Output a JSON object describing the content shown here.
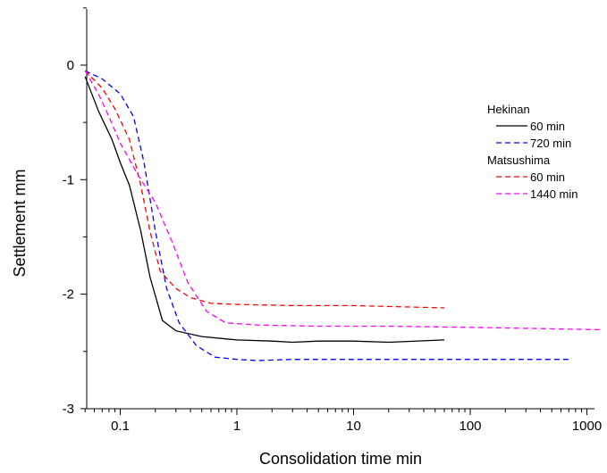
{
  "chart_data": {
    "type": "line",
    "title": "",
    "xlabel": "Consolidation time min",
    "ylabel": "Settlement mm",
    "x_scale": "log",
    "xlim": [
      0.05,
      1300
    ],
    "ylim": [
      -3,
      0.5
    ],
    "x_ticks": [
      0.1,
      1,
      10,
      100,
      1000
    ],
    "x_tick_labels": [
      "0.1",
      "1",
      "10",
      "100",
      "1000"
    ],
    "y_ticks": [
      0,
      -1,
      -2,
      -3
    ],
    "y_tick_labels": [
      "0",
      "-1",
      "-2",
      "-3"
    ],
    "grid": false,
    "legend_position": "top-right",
    "legend_groups": [
      "Hekinan",
      "Matsushima"
    ],
    "series": [
      {
        "name": "60 min",
        "group": "Hekinan",
        "color": "#000000",
        "dash": "solid",
        "points": [
          [
            0.05,
            -0.1
          ],
          [
            0.065,
            -0.4
          ],
          [
            0.085,
            -0.65
          ],
          [
            0.1,
            -0.85
          ],
          [
            0.12,
            -1.05
          ],
          [
            0.15,
            -1.45
          ],
          [
            0.18,
            -1.85
          ],
          [
            0.23,
            -2.23
          ],
          [
            0.3,
            -2.32
          ],
          [
            0.5,
            -2.37
          ],
          [
            1,
            -2.4
          ],
          [
            2,
            -2.41
          ],
          [
            3,
            -2.42
          ],
          [
            5,
            -2.41
          ],
          [
            10,
            -2.41
          ],
          [
            20,
            -2.42
          ],
          [
            60,
            -2.4
          ]
        ]
      },
      {
        "name": "720 min",
        "group": "Hekinan",
        "color": "#0000ff",
        "dash": "dashed",
        "points": [
          [
            0.05,
            -0.05
          ],
          [
            0.07,
            -0.12
          ],
          [
            0.1,
            -0.25
          ],
          [
            0.13,
            -0.45
          ],
          [
            0.16,
            -0.85
          ],
          [
            0.2,
            -1.45
          ],
          [
            0.25,
            -1.95
          ],
          [
            0.32,
            -2.25
          ],
          [
            0.45,
            -2.45
          ],
          [
            0.65,
            -2.55
          ],
          [
            1,
            -2.57
          ],
          [
            1.5,
            -2.58
          ],
          [
            3,
            -2.57
          ],
          [
            10,
            -2.57
          ],
          [
            100,
            -2.57
          ],
          [
            700,
            -2.57
          ]
        ]
      },
      {
        "name": "60 min",
        "group": "Matsushima",
        "color": "#ff0000",
        "dash": "dashed",
        "points": [
          [
            0.05,
            -0.05
          ],
          [
            0.07,
            -0.2
          ],
          [
            0.09,
            -0.38
          ],
          [
            0.12,
            -0.65
          ],
          [
            0.15,
            -1.05
          ],
          [
            0.18,
            -1.45
          ],
          [
            0.22,
            -1.8
          ],
          [
            0.3,
            -1.95
          ],
          [
            0.4,
            -2.03
          ],
          [
            0.6,
            -2.08
          ],
          [
            1,
            -2.09
          ],
          [
            3,
            -2.1
          ],
          [
            10,
            -2.1
          ],
          [
            60,
            -2.12
          ]
        ]
      },
      {
        "name": "1440 min",
        "group": "Matsushima",
        "color": "#ff00ff",
        "dash": "dashed",
        "points": [
          [
            0.05,
            -0.05
          ],
          [
            0.065,
            -0.25
          ],
          [
            0.08,
            -0.45
          ],
          [
            0.1,
            -0.68
          ],
          [
            0.14,
            -0.95
          ],
          [
            0.2,
            -1.2
          ],
          [
            0.28,
            -1.55
          ],
          [
            0.38,
            -1.9
          ],
          [
            0.55,
            -2.15
          ],
          [
            0.8,
            -2.25
          ],
          [
            1.5,
            -2.27
          ],
          [
            5,
            -2.28
          ],
          [
            20,
            -2.28
          ],
          [
            100,
            -2.29
          ],
          [
            1300,
            -2.31
          ]
        ]
      }
    ]
  }
}
